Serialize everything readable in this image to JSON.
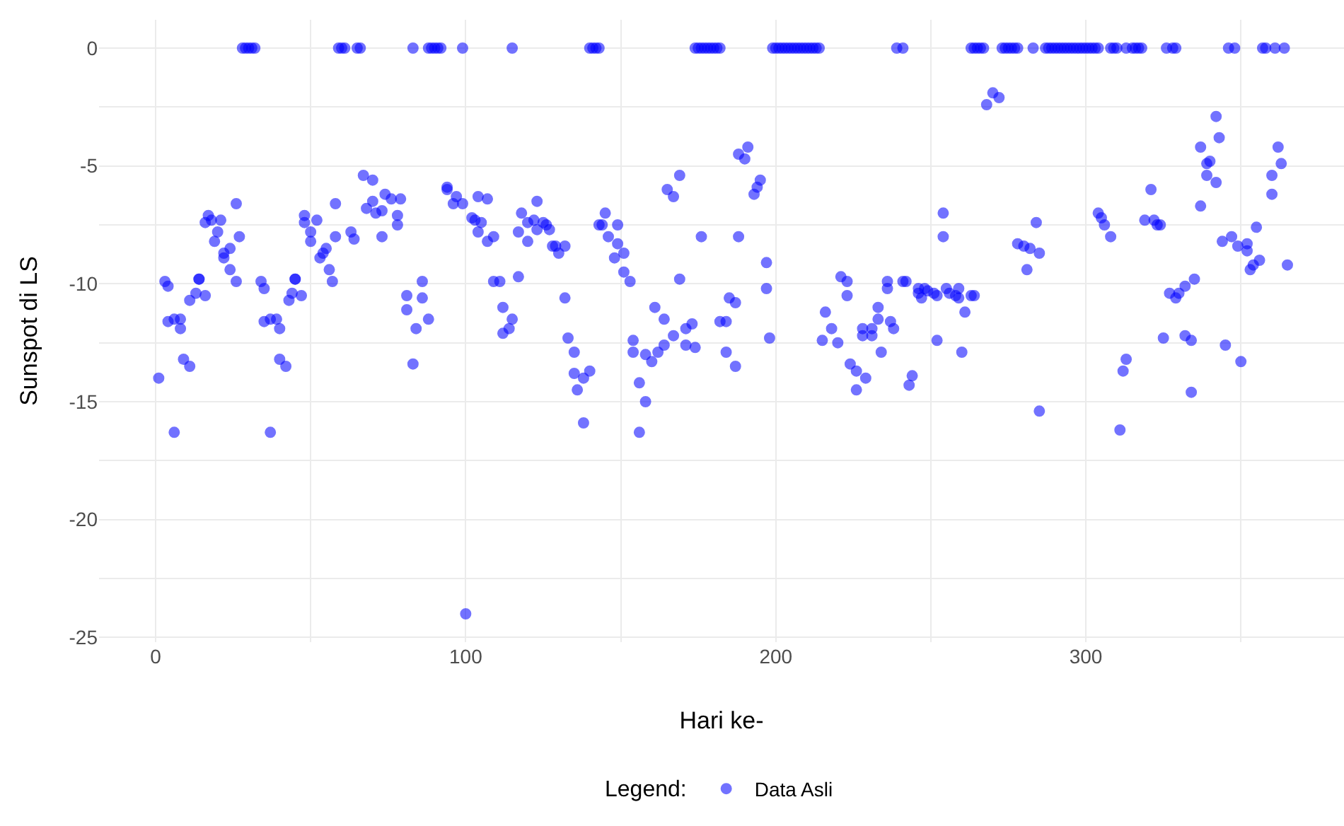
{
  "chart_data": {
    "type": "scatter",
    "xlabel": "Hari ke-",
    "ylabel": "Sunspot di LS",
    "legend_title": "Legend:",
    "legend": "bottom",
    "grid": true,
    "marker": "circle",
    "xlim": [
      -18.25,
      383.25
    ],
    "xticks": [
      0,
      100,
      200,
      300,
      {
        "value": 50,
        "label": null
      },
      {
        "value": 150,
        "label": null
      },
      {
        "value": 250,
        "label": null
      },
      {
        "value": 350,
        "label": null
      }
    ],
    "ylim": [
      -25.2,
      1.2
    ],
    "yticks": [
      0,
      -5,
      -10,
      -15,
      -20,
      -25,
      {
        "value": -2.5,
        "label": null
      },
      {
        "value": -7.5,
        "label": null
      },
      {
        "value": -12.5,
        "label": null
      },
      {
        "value": -17.5,
        "label": null
      },
      {
        "value": -22.5,
        "label": null
      }
    ],
    "series": [
      {
        "name": "Data Asli",
        "color": "#0000ff",
        "x": [
          1,
          3,
          4,
          4,
          6,
          6,
          8,
          8,
          9,
          11,
          11,
          13,
          14,
          14,
          16,
          16,
          17,
          18,
          19,
          20,
          21,
          22,
          22,
          24,
          24,
          26,
          26,
          27,
          28,
          29,
          30,
          31,
          32,
          34,
          35,
          35,
          37,
          37,
          39,
          40,
          40,
          42,
          43,
          44,
          45,
          45,
          47,
          48,
          48,
          50,
          50,
          52,
          53,
          54,
          55,
          56,
          57,
          58,
          58,
          59,
          60,
          61,
          65,
          66,
          63,
          64,
          67,
          68,
          70,
          70,
          71,
          73,
          73,
          74,
          76,
          78,
          78,
          79,
          81,
          81,
          83,
          83,
          84,
          86,
          86,
          88,
          88,
          89,
          90,
          91,
          92,
          94,
          94,
          96,
          97,
          99,
          99,
          100,
          102,
          103,
          104,
          104,
          105,
          107,
          107,
          109,
          109,
          111,
          112,
          112,
          114,
          115,
          115,
          117,
          117,
          118,
          120,
          120,
          122,
          123,
          123,
          125,
          126,
          127,
          128,
          129,
          130,
          132,
          132,
          133,
          135,
          135,
          136,
          138,
          138,
          140,
          140,
          141,
          142,
          143,
          143,
          144,
          145,
          146,
          148,
          149,
          149,
          151,
          151,
          153,
          154,
          154,
          156,
          156,
          158,
          158,
          160,
          161,
          162,
          164,
          164,
          165,
          167,
          167,
          169,
          169,
          171,
          171,
          173,
          174,
          174,
          175,
          176,
          177,
          178,
          179,
          180,
          181,
          182,
          176,
          182,
          184,
          184,
          185,
          187,
          187,
          188,
          188,
          190,
          191,
          193,
          194,
          195,
          197,
          197,
          198,
          199,
          200,
          201,
          202,
          203,
          204,
          205,
          206,
          207,
          208,
          209,
          210,
          211,
          212,
          213,
          214,
          215,
          216,
          218,
          220,
          221,
          223,
          223,
          224,
          226,
          226,
          228,
          228,
          229,
          231,
          231,
          233,
          233,
          234,
          236,
          236,
          237,
          238,
          239,
          241,
          241,
          242,
          243,
          244,
          246,
          246,
          247,
          248,
          249,
          251,
          252,
          252,
          254,
          254,
          255,
          256,
          258,
          259,
          259,
          260,
          261,
          263,
          264,
          263,
          264,
          265,
          266,
          267,
          268,
          270,
          272,
          273,
          274,
          275,
          276,
          277,
          278,
          278,
          280,
          281,
          282,
          283,
          284,
          285,
          285,
          287,
          288,
          289,
          290,
          291,
          292,
          293,
          294,
          295,
          296,
          297,
          298,
          299,
          300,
          301,
          302,
          303,
          304,
          304,
          305,
          306,
          308,
          308,
          309,
          310,
          313,
          315,
          316,
          317,
          318,
          311,
          312,
          313,
          319,
          321,
          322,
          323,
          324,
          325,
          326,
          328,
          329,
          327,
          329,
          330,
          332,
          332,
          334,
          334,
          335,
          337,
          337,
          339,
          339,
          340,
          342,
          342,
          343,
          344,
          345,
          346,
          348,
          347,
          349,
          350,
          352,
          352,
          353,
          354,
          355,
          356,
          357,
          358,
          361,
          364,
          360,
          360,
          362,
          363,
          365
        ],
        "values": [
          -14.0,
          -9.9,
          -10.1,
          -11.6,
          -11.5,
          -16.3,
          -11.5,
          -11.9,
          -13.2,
          -13.5,
          -10.7,
          -10.4,
          -9.8,
          -9.8,
          -10.5,
          -7.4,
          -7.1,
          -7.3,
          -8.2,
          -7.8,
          -7.3,
          -8.9,
          -8.7,
          -8.5,
          -9.4,
          -9.9,
          -6.6,
          -8.0,
          0,
          0,
          0,
          0,
          0,
          -9.9,
          -10.2,
          -11.6,
          -11.5,
          -16.3,
          -11.5,
          -11.9,
          -13.2,
          -13.5,
          -10.7,
          -10.4,
          -9.8,
          -9.8,
          -10.5,
          -7.4,
          -7.1,
          -8.2,
          -7.8,
          -7.3,
          -8.9,
          -8.7,
          -8.5,
          -9.4,
          -9.9,
          -6.6,
          -8.0,
          0,
          0,
          0,
          0,
          0,
          -7.8,
          -8.1,
          -5.4,
          -6.8,
          -5.6,
          -6.5,
          -7.0,
          -6.9,
          -8.0,
          -6.2,
          -6.4,
          -7.1,
          -7.5,
          -6.4,
          -10.5,
          -11.1,
          0,
          -13.4,
          -11.9,
          -9.9,
          -10.6,
          -11.5,
          0,
          0,
          0,
          0,
          0,
          -5.9,
          -6.0,
          -6.6,
          -6.3,
          -6.6,
          0,
          -24.0,
          -7.2,
          -7.3,
          -6.3,
          -7.8,
          -7.4,
          -6.4,
          -8.2,
          -8.0,
          -9.9,
          -9.9,
          -11.0,
          -12.1,
          -11.9,
          -11.5,
          0,
          -9.7,
          -7.8,
          -7.0,
          -7.4,
          -8.2,
          -7.3,
          -7.7,
          -6.5,
          -7.4,
          -7.5,
          -7.7,
          -8.4,
          -8.4,
          -8.7,
          -8.4,
          -10.6,
          -12.3,
          -12.9,
          -13.8,
          -14.5,
          -14.0,
          -15.9,
          -13.7,
          0,
          0,
          0,
          0,
          -7.5,
          -7.5,
          -7.0,
          -8.0,
          -8.9,
          -7.5,
          -8.3,
          -8.7,
          -9.5,
          -9.9,
          -12.4,
          -12.9,
          -14.2,
          -16.3,
          -15.0,
          -13.0,
          -13.3,
          -11.0,
          -12.9,
          -12.6,
          -11.5,
          -6.0,
          -6.3,
          -12.2,
          -5.4,
          -9.8,
          -11.9,
          -12.6,
          -11.7,
          -12.7,
          0,
          0,
          0,
          0,
          0,
          0,
          0,
          0,
          0,
          -8.0,
          -11.6,
          -11.6,
          -12.9,
          -10.6,
          -10.8,
          -13.5,
          -4.5,
          -8.0,
          -4.7,
          -4.2,
          -6.2,
          -5.9,
          -5.6,
          -9.1,
          -10.2,
          -12.3,
          0,
          0,
          0,
          0,
          0,
          0,
          0,
          0,
          0,
          0,
          0,
          0,
          0,
          0,
          0,
          0,
          -12.4,
          -11.2,
          -11.9,
          -12.5,
          -9.7,
          -9.9,
          -10.5,
          -13.4,
          -13.7,
          -14.5,
          -12.2,
          -11.9,
          -14.0,
          -12.2,
          -11.9,
          -11.5,
          -11.0,
          -12.9,
          -10.2,
          -9.9,
          -11.6,
          -11.9,
          0,
          0,
          -9.9,
          -9.9,
          -14.3,
          -13.9,
          -10.4,
          -10.2,
          -10.6,
          -10.2,
          -10.3,
          -10.4,
          -10.5,
          -12.4,
          -8.0,
          -7.0,
          -10.2,
          -10.4,
          -10.5,
          -10.2,
          -10.6,
          -12.9,
          -11.2,
          -10.5,
          -10.5,
          0,
          0,
          0,
          0,
          0,
          -2.4,
          -1.9,
          -2.1,
          0,
          0,
          0,
          0,
          0,
          0,
          -8.3,
          -8.4,
          -9.4,
          -8.5,
          0,
          -7.4,
          -8.7,
          -15.4,
          0,
          0,
          0,
          0,
          0,
          0,
          0,
          0,
          0,
          0,
          0,
          0,
          0,
          0,
          0,
          0,
          0,
          0,
          -7.0,
          -7.2,
          -7.5,
          -8.0,
          0,
          0,
          0,
          0,
          0,
          0,
          0,
          0,
          -16.2,
          -13.7,
          -13.2,
          -7.3,
          -6.0,
          -7.3,
          -7.5,
          -7.5,
          -12.3,
          0,
          0,
          0,
          -10.4,
          -10.6,
          -10.4,
          -10.1,
          -12.2,
          -12.4,
          -14.6,
          -9.8,
          -6.7,
          -4.2,
          -4.9,
          -5.4,
          -4.8,
          -5.7,
          -2.9,
          -3.8,
          -8.2,
          -12.6,
          0,
          0,
          -8.0,
          -8.4,
          -13.3,
          -8.6,
          -8.3,
          -9.4,
          -9.2,
          -7.6,
          -9.0,
          0,
          0,
          0,
          0,
          -6.2,
          -5.4,
          -4.2,
          -4.9,
          -9.2
        ]
      }
    ]
  }
}
